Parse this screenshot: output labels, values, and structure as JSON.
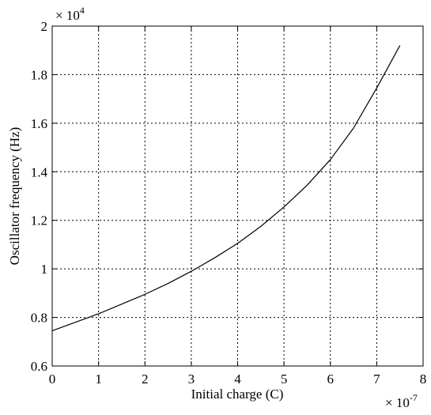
{
  "chart_data": {
    "type": "line",
    "title": "",
    "xlabel": "Initial charge (C)",
    "ylabel": "Oscillator frequency (Hz)",
    "x_exponent": {
      "base": "× 10",
      "power": "-7"
    },
    "y_exponent": {
      "base": "× 10",
      "power": "4"
    },
    "xlim": [
      0,
      8
    ],
    "ylim": [
      0.6,
      2.0
    ],
    "x_ticks": [
      "0",
      "1",
      "2",
      "3",
      "4",
      "5",
      "6",
      "7",
      "8"
    ],
    "y_ticks": [
      "0.6",
      "0.8",
      "1",
      "1.2",
      "1.4",
      "1.6",
      "1.8",
      "2"
    ],
    "grid": true,
    "series": [
      {
        "x": [
          0,
          0.5,
          1.0,
          1.5,
          2.0,
          2.5,
          3.0,
          3.5,
          4.0,
          4.5,
          5.0,
          5.5,
          6.0,
          6.5,
          7.0,
          7.5
        ],
        "y": [
          0.745,
          0.78,
          0.815,
          0.855,
          0.895,
          0.94,
          0.99,
          1.045,
          1.105,
          1.175,
          1.255,
          1.345,
          1.45,
          1.58,
          1.745,
          1.92
        ]
      }
    ]
  }
}
